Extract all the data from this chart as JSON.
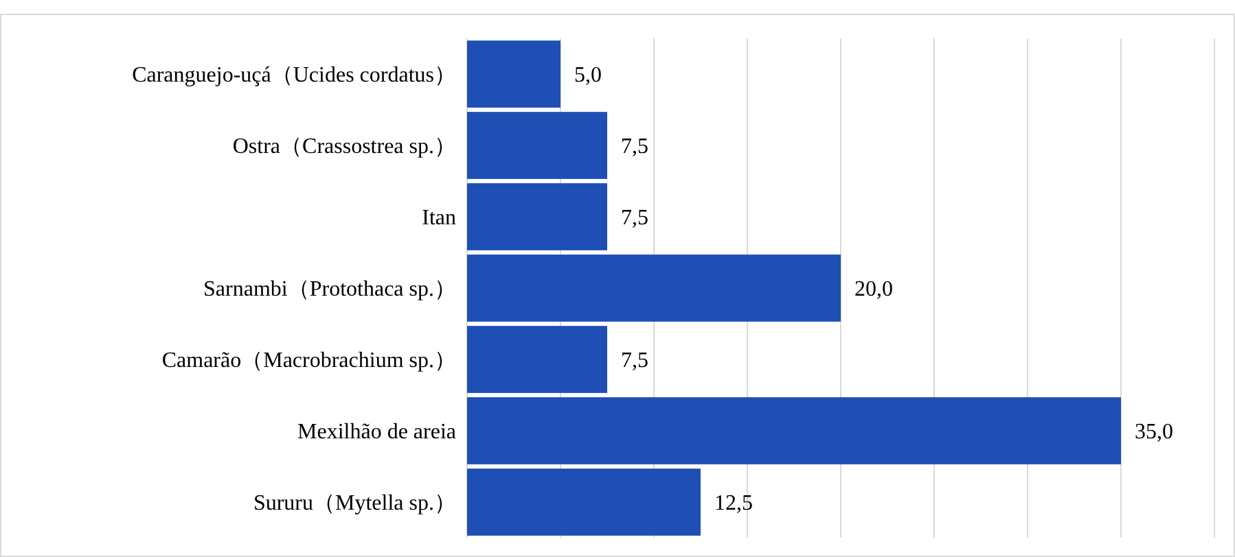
{
  "chart_data": {
    "type": "bar",
    "orientation": "horizontal",
    "categories": [
      "Caranguejo-uçá（Ucides cordatus）",
      "Ostra（Crassostrea sp.）",
      "Itan",
      "Sarnambi（Protothaca sp.）",
      "Camarão（Macrobrachium sp.）",
      "Mexilhão de areia",
      "Sururu（Mytella sp.）"
    ],
    "values": [
      5,
      7.5,
      7.5,
      20,
      7.5,
      35,
      12.5
    ],
    "value_labels": [
      "5,0",
      "7,5",
      "7,5",
      "20,0",
      "7,5",
      "35,0",
      "12,5"
    ],
    "color": "#1f4fb5",
    "xlim": [
      0,
      40
    ],
    "xticks": [
      {
        "value": 0,
        "label": null
      },
      {
        "value": 5,
        "label": null
      },
      {
        "value": 10,
        "label": null
      },
      {
        "value": 15,
        "label": null
      },
      {
        "value": 20,
        "label": null
      },
      {
        "value": 25,
        "label": null
      },
      {
        "value": 30,
        "label": null
      },
      {
        "value": 35,
        "label": null
      },
      {
        "value": 40,
        "label": null
      }
    ],
    "grid": "x",
    "tick_labels": "y"
  }
}
